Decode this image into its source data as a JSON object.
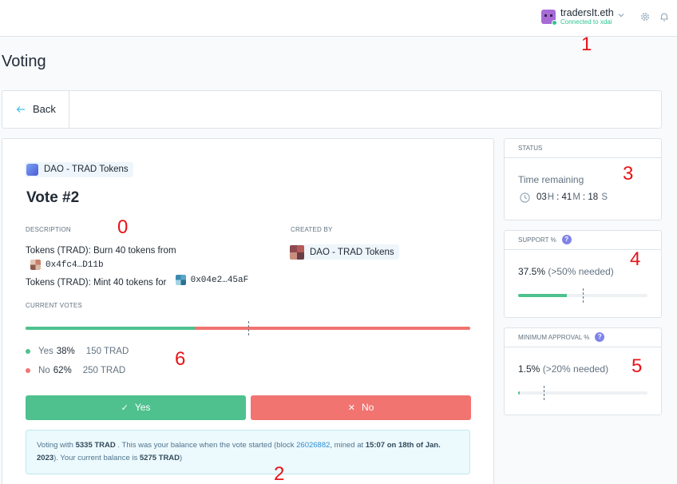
{
  "header": {
    "account_name": "tradersIt.eth",
    "network": "Connected to xdai",
    "avatar_icon": "user-avatar-icon",
    "settings_icon": "gear-icon",
    "notifications_icon": "bell-icon"
  },
  "page": {
    "title": "Voting"
  },
  "backbar": {
    "back_label": "Back"
  },
  "vote": {
    "app_name": "DAO - TRAD Tokens",
    "title": "Vote #2",
    "description_label": "DESCRIPTION",
    "description": {
      "line1": "Tokens (TRAD): Burn 40 tokens from",
      "line1_address": "0x4fc4…D11b",
      "line2": "Tokens (TRAD): Mint 40 tokens for",
      "line2_address": "0x04e2…45aF"
    },
    "created_by_label": "CREATED BY",
    "created_by": "DAO - TRAD Tokens",
    "current_votes_label": "CURRENT VOTES",
    "yes_fraction": 0.38,
    "required_support_fraction": 0.5,
    "yes": {
      "label": "Yes",
      "pct": "38%",
      "amount": "150 TRAD"
    },
    "no": {
      "label": "No",
      "pct": "62%",
      "amount": "250 TRAD"
    },
    "yes_button": "Yes",
    "no_button": "No",
    "info": {
      "t1": "Voting with ",
      "balance": "5335 TRAD",
      "t2": " . This was your balance when the vote started (block ",
      "block": "26026882",
      "t3": ", mined at ",
      "mined_at": "15:07 on 18th of Jan. 2023",
      "t4": "). Your current balance is ",
      "current": "5275 TRAD",
      "t5": ")"
    }
  },
  "status": {
    "label": "STATUS",
    "time_label": "Time remaining",
    "hours": "03",
    "h": "H",
    "minutes": "41",
    "m": "M",
    "seconds": "18",
    "s": "S",
    "sep": ":"
  },
  "support": {
    "label": "SUPPORT %",
    "value": "37.5%",
    "needed": "(>50% needed)",
    "fraction": 0.375,
    "threshold": 0.5
  },
  "approval": {
    "label": "MINIMUM APPROVAL %",
    "value": "1.5%",
    "needed": "(>20% needed)",
    "fraction": 0.015,
    "threshold": 0.2
  },
  "annotations": [
    "0",
    "1",
    "2",
    "3",
    "4",
    "5",
    "6"
  ],
  "colors": {
    "yes": "#4fc18f",
    "no": "#f17471",
    "annotation": "#e8141a"
  }
}
